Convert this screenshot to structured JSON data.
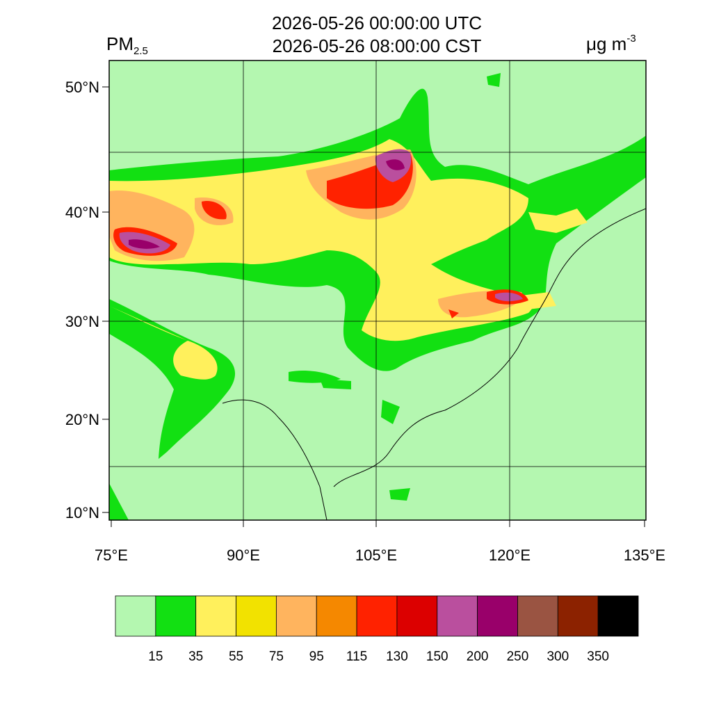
{
  "header": {
    "title_lines": [
      "2026-05-26 00:00:00 UTC",
      "2026-05-26 08:00:00 CST"
    ],
    "variable": {
      "name": "PM",
      "subscript": "2.5"
    },
    "units": {
      "base": "μg m",
      "exponent": "-3"
    }
  },
  "map": {
    "lat_labels": [
      "50°N",
      "40°N",
      "30°N",
      "20°N",
      "10°N"
    ],
    "lon_labels": [
      "75°E",
      "90°E",
      "105°E",
      "120°E",
      "135°E"
    ]
  },
  "colorbar": {
    "levels": [
      15,
      35,
      55,
      75,
      95,
      115,
      130,
      150,
      200,
      250,
      300,
      350
    ],
    "colors": [
      "#b4f7b0",
      "#12e012",
      "#fff05c",
      "#f2e200",
      "#ffb45e",
      "#f58800",
      "#ff2200",
      "#dc0000",
      "#ba4f9e",
      "#99006a",
      "#9a5442",
      "#8c2200",
      "#000000"
    ]
  }
}
